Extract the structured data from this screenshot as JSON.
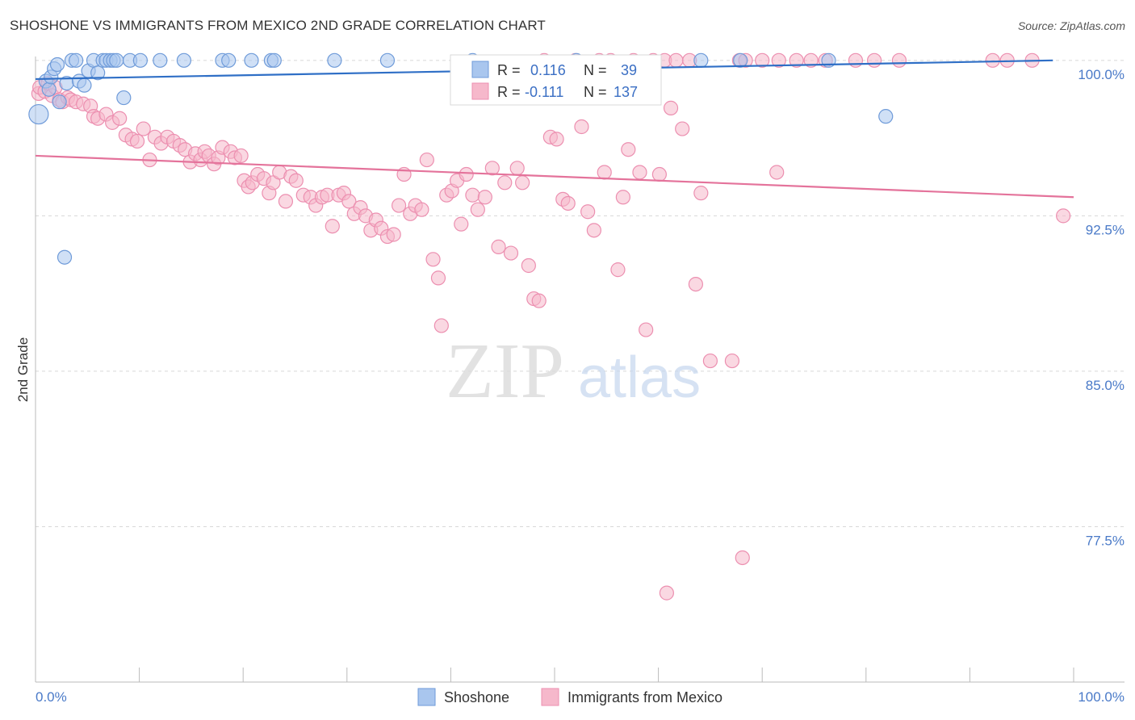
{
  "title": "SHOSHONE VS IMMIGRANTS FROM MEXICO 2ND GRADE CORRELATION CHART",
  "source": "Source: ZipAtlas.com",
  "watermark": {
    "zip": "ZIP",
    "atlas": "atlas"
  },
  "colors": {
    "blue_fill": "#a9c6ee",
    "blue_stroke": "#6f9bd9",
    "blue_line": "#2f6fc6",
    "pink_fill": "#f6b8cb",
    "pink_stroke": "#ec8fb0",
    "pink_line": "#e4739b",
    "grid": "#d8d8d8",
    "tick_text": "#4a7ac8"
  },
  "stats": {
    "shoshone": {
      "r_label": "R =",
      "r": "0.116",
      "n_label": "N =",
      "n": "39"
    },
    "mexico": {
      "r_label": "R =",
      "r": "-0.111",
      "n_label": "N =",
      "n": "137"
    }
  },
  "chart_data": {
    "type": "scatter",
    "title": "SHOSHONE VS IMMIGRANTS FROM MEXICO 2ND GRADE CORRELATION CHART",
    "xlabel": "",
    "ylabel": "2nd Grade",
    "xlim": [
      0,
      100
    ],
    "ylim": [
      70.0,
      100.5
    ],
    "x_tick_labels": {
      "left": "0.0%",
      "right": "100.0%"
    },
    "y_ticks": [
      {
        "value": 100.0,
        "label": "100.0%"
      },
      {
        "value": 92.5,
        "label": "92.5%"
      },
      {
        "value": 85.0,
        "label": "85.0%"
      },
      {
        "value": 77.5,
        "label": "77.5%"
      }
    ],
    "legend": [
      {
        "name": "Shoshone",
        "color": "blue"
      },
      {
        "name": "Immigrants from Mexico",
        "color": "pink"
      }
    ],
    "series": [
      {
        "name": "Shoshone",
        "color": "blue",
        "trend": {
          "x": [
            0,
            98
          ],
          "y": [
            99.1,
            100.0
          ]
        },
        "points": [
          [
            0.3,
            97.4
          ],
          [
            1.0,
            99.0
          ],
          [
            1.3,
            98.6
          ],
          [
            1.5,
            99.2
          ],
          [
            1.8,
            99.6
          ],
          [
            2.1,
            99.8
          ],
          [
            2.3,
            98.0
          ],
          [
            2.8,
            90.5
          ],
          [
            3.0,
            98.9
          ],
          [
            3.5,
            100
          ],
          [
            3.9,
            100
          ],
          [
            4.2,
            99.0
          ],
          [
            4.7,
            98.8
          ],
          [
            5.1,
            99.5
          ],
          [
            5.6,
            100
          ],
          [
            6.0,
            99.4
          ],
          [
            6.5,
            100
          ],
          [
            6.8,
            100
          ],
          [
            7.2,
            100
          ],
          [
            7.5,
            100
          ],
          [
            7.8,
            100
          ],
          [
            8.5,
            98.2
          ],
          [
            9.1,
            100
          ],
          [
            10.1,
            100
          ],
          [
            12.0,
            100
          ],
          [
            14.3,
            100
          ],
          [
            18.0,
            100
          ],
          [
            18.6,
            100
          ],
          [
            20.8,
            100
          ],
          [
            22.7,
            100
          ],
          [
            23.0,
            100
          ],
          [
            28.8,
            100
          ],
          [
            33.9,
            100
          ],
          [
            42.1,
            100
          ],
          [
            52.1,
            100
          ],
          [
            64.1,
            100
          ],
          [
            67.9,
            100
          ],
          [
            76.4,
            100
          ],
          [
            81.9,
            97.3
          ]
        ]
      },
      {
        "name": "Immigrants from Mexico",
        "color": "pink",
        "trend": {
          "x": [
            0,
            100
          ],
          "y": [
            95.4,
            93.4
          ]
        },
        "points": [
          [
            0.3,
            98.4
          ],
          [
            0.4,
            98.7
          ],
          [
            0.9,
            98.5
          ],
          [
            1.2,
            98.9
          ],
          [
            1.6,
            98.3
          ],
          [
            1.9,
            98.7
          ],
          [
            2.3,
            98.1
          ],
          [
            2.6,
            98.0
          ],
          [
            3.1,
            98.2
          ],
          [
            3.4,
            98.1
          ],
          [
            3.9,
            98.0
          ],
          [
            4.6,
            97.9
          ],
          [
            5.3,
            97.8
          ],
          [
            5.6,
            97.3
          ],
          [
            6.0,
            97.2
          ],
          [
            6.8,
            97.4
          ],
          [
            7.4,
            97.0
          ],
          [
            8.1,
            97.2
          ],
          [
            8.7,
            96.4
          ],
          [
            9.3,
            96.2
          ],
          [
            9.8,
            96.1
          ],
          [
            10.4,
            96.7
          ],
          [
            11.0,
            95.2
          ],
          [
            11.5,
            96.3
          ],
          [
            12.1,
            96.0
          ],
          [
            12.7,
            96.3
          ],
          [
            13.3,
            96.1
          ],
          [
            13.9,
            95.9
          ],
          [
            14.4,
            95.7
          ],
          [
            14.9,
            95.1
          ],
          [
            15.4,
            95.5
          ],
          [
            15.9,
            95.2
          ],
          [
            16.3,
            95.6
          ],
          [
            16.7,
            95.4
          ],
          [
            17.2,
            95.0
          ],
          [
            17.6,
            95.3
          ],
          [
            18.0,
            95.8
          ],
          [
            18.8,
            95.6
          ],
          [
            19.2,
            95.3
          ],
          [
            19.8,
            95.4
          ],
          [
            20.1,
            94.2
          ],
          [
            20.5,
            93.9
          ],
          [
            20.9,
            94.1
          ],
          [
            21.4,
            94.5
          ],
          [
            22.0,
            94.3
          ],
          [
            22.5,
            93.6
          ],
          [
            22.9,
            94.1
          ],
          [
            23.5,
            94.6
          ],
          [
            24.1,
            93.2
          ],
          [
            24.6,
            94.4
          ],
          [
            25.1,
            94.2
          ],
          [
            25.8,
            93.5
          ],
          [
            26.5,
            93.4
          ],
          [
            27.0,
            93.0
          ],
          [
            27.6,
            93.4
          ],
          [
            28.1,
            93.5
          ],
          [
            28.6,
            92.0
          ],
          [
            29.2,
            93.5
          ],
          [
            29.7,
            93.6
          ],
          [
            30.2,
            93.2
          ],
          [
            30.7,
            92.6
          ],
          [
            31.3,
            92.9
          ],
          [
            31.8,
            92.5
          ],
          [
            32.3,
            91.8
          ],
          [
            32.8,
            92.3
          ],
          [
            33.3,
            91.9
          ],
          [
            33.9,
            91.5
          ],
          [
            34.5,
            91.6
          ],
          [
            35.0,
            93.0
          ],
          [
            35.5,
            94.5
          ],
          [
            36.1,
            92.6
          ],
          [
            36.6,
            93.0
          ],
          [
            37.2,
            92.8
          ],
          [
            37.7,
            95.2
          ],
          [
            38.3,
            90.4
          ],
          [
            38.8,
            89.5
          ],
          [
            39.1,
            87.2
          ],
          [
            39.6,
            93.5
          ],
          [
            40.1,
            93.7
          ],
          [
            40.6,
            94.2
          ],
          [
            41.0,
            92.1
          ],
          [
            41.5,
            94.5
          ],
          [
            42.1,
            93.5
          ],
          [
            42.6,
            92.8
          ],
          [
            43.3,
            93.4
          ],
          [
            44.0,
            94.8
          ],
          [
            44.6,
            91.0
          ],
          [
            45.2,
            94.1
          ],
          [
            45.8,
            90.7
          ],
          [
            46.4,
            94.8
          ],
          [
            46.9,
            94.1
          ],
          [
            47.5,
            90.1
          ],
          [
            48.0,
            88.5
          ],
          [
            48.5,
            88.4
          ],
          [
            49.0,
            100
          ],
          [
            49.6,
            96.3
          ],
          [
            50.2,
            96.2
          ],
          [
            50.8,
            93.3
          ],
          [
            51.3,
            93.1
          ],
          [
            52.0,
            100
          ],
          [
            52.6,
            96.8
          ],
          [
            53.2,
            92.7
          ],
          [
            53.8,
            91.8
          ],
          [
            54.3,
            100
          ],
          [
            54.8,
            94.6
          ],
          [
            55.4,
            100
          ],
          [
            56.1,
            89.9
          ],
          [
            56.6,
            93.4
          ],
          [
            57.1,
            95.7
          ],
          [
            57.6,
            100
          ],
          [
            58.2,
            94.6
          ],
          [
            58.8,
            87.0
          ],
          [
            59.5,
            100
          ],
          [
            60.1,
            94.5
          ],
          [
            60.6,
            100
          ],
          [
            61.2,
            97.7
          ],
          [
            61.7,
            100
          ],
          [
            62.3,
            96.7
          ],
          [
            63.0,
            100
          ],
          [
            63.6,
            89.2
          ],
          [
            64.1,
            93.6
          ],
          [
            65.0,
            85.5
          ],
          [
            67.1,
            85.5
          ],
          [
            67.8,
            100
          ],
          [
            68.4,
            100
          ],
          [
            70.0,
            100
          ],
          [
            71.4,
            94.6
          ],
          [
            71.6,
            100
          ],
          [
            73.3,
            100
          ],
          [
            74.7,
            100
          ],
          [
            76.1,
            100
          ],
          [
            79.0,
            100
          ],
          [
            80.8,
            100
          ],
          [
            83.2,
            100
          ],
          [
            92.2,
            100
          ],
          [
            93.6,
            100
          ],
          [
            96.0,
            100
          ],
          [
            99.0,
            92.5
          ],
          [
            68.1,
            76.0
          ],
          [
            60.8,
            74.3
          ]
        ]
      }
    ]
  }
}
